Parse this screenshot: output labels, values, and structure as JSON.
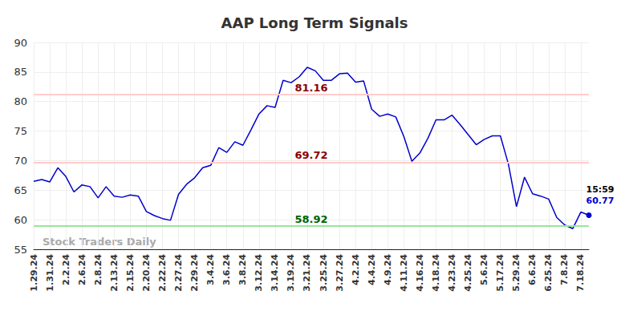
{
  "chart_data": {
    "type": "line",
    "title": "AAP Long Term Signals",
    "categories": [
      "1.29.24",
      null,
      "1.31.24",
      null,
      "2.2.24",
      null,
      "2.6.24",
      null,
      "2.8.24",
      null,
      "2.13.24",
      null,
      "2.15.24",
      null,
      "2.20.24",
      null,
      "2.22.24",
      null,
      "2.27.24",
      null,
      "2.29.24",
      null,
      "3.4.24",
      null,
      "3.6.24",
      null,
      "3.8.24",
      null,
      "3.12.24",
      null,
      "3.14.24",
      null,
      "3.19.24",
      null,
      "3.21.24",
      null,
      "3.25.24",
      null,
      "3.27.24",
      null,
      "4.2.24",
      null,
      "4.4.24",
      null,
      "4.9.24",
      null,
      "4.11.24",
      null,
      "4.16.24",
      null,
      "4.18.24",
      null,
      "4.23.24",
      null,
      "4.25.24",
      null,
      "5.6.24",
      null,
      "5.17.24",
      null,
      "5.29.24",
      null,
      "6.6.24",
      null,
      "6.25.24",
      null,
      "7.8.24",
      null,
      "7.18.24",
      null
    ],
    "values": [
      66.5,
      66.8,
      66.4,
      68.8,
      67.3,
      64.7,
      65.9,
      65.6,
      63.7,
      65.6,
      64.0,
      63.8,
      64.2,
      64.0,
      61.4,
      60.7,
      60.2,
      59.9,
      64.3,
      66.0,
      67.1,
      68.8,
      69.2,
      72.2,
      71.4,
      73.2,
      72.6,
      75.2,
      77.9,
      79.3,
      79.0,
      83.6,
      83.2,
      84.2,
      85.8,
      85.2,
      83.6,
      83.6,
      84.7,
      84.8,
      83.3,
      83.5,
      78.7,
      77.5,
      77.9,
      77.4,
      74.1,
      69.9,
      71.3,
      73.8,
      76.9,
      76.9,
      77.7,
      76.1,
      74.4,
      72.7,
      73.6,
      74.2,
      74.2,
      69.4,
      62.2,
      67.2,
      64.4,
      64.0,
      63.5,
      60.4,
      59.1,
      58.5,
      61.3,
      60.77
    ],
    "color": "#0000cc",
    "ylim": [
      55,
      90
    ],
    "yticks": [
      55,
      60,
      65,
      70,
      75,
      80,
      85,
      90
    ],
    "grid": true,
    "signals": [
      {
        "value": 81.16,
        "color": "#ffcccc",
        "text_color": "#8b0000"
      },
      {
        "value": 69.72,
        "color": "#ffcccc",
        "text_color": "#8b0000"
      },
      {
        "value": 58.92,
        "color": "#99e699",
        "text_color": "#006400"
      }
    ],
    "end_time": "15:59",
    "watermark": "Stock Traders Daily"
  }
}
